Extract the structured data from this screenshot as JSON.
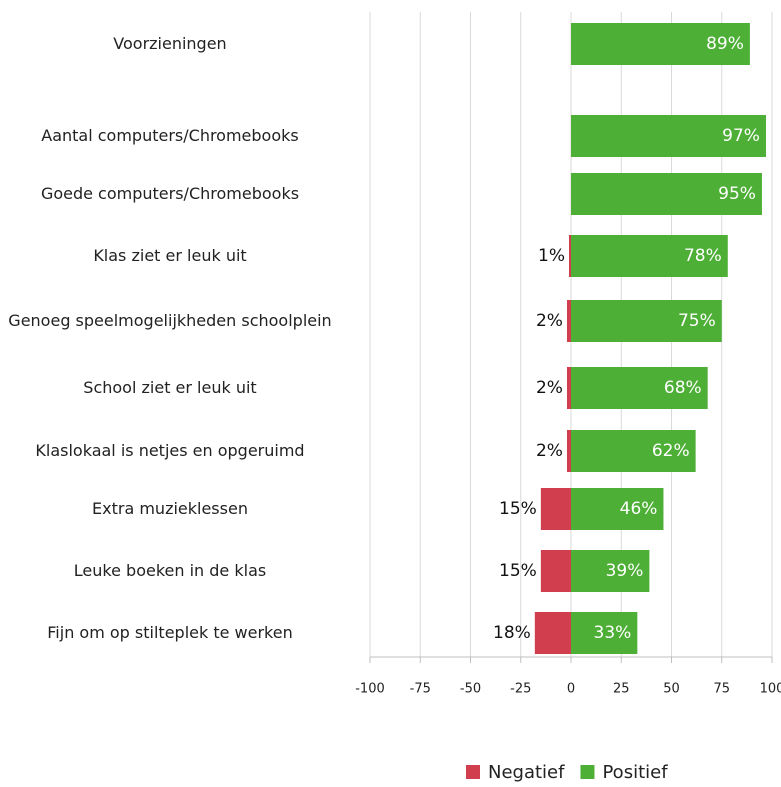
{
  "chart_data": {
    "type": "diverging-bar",
    "categories": [
      "Voorzieningen",
      "Aantal computers/Chromebooks",
      "Goede computers/Chromebooks",
      "Klas ziet er leuk uit",
      "Genoeg speelmogelijkheden schoolplein",
      "School ziet er leuk uit",
      "Klaslokaal is netjes en opgeruimd",
      "Extra muzieklessen",
      "Leuke boeken in de klas",
      "Fijn om op stilteplek te werken"
    ],
    "series": [
      {
        "name": "Negatief",
        "color": "#d13f4f",
        "values": [
          null,
          null,
          null,
          -1,
          -2,
          -2,
          -2,
          -15,
          -15,
          -18
        ],
        "value_labels": [
          null,
          null,
          null,
          "1%",
          "2%",
          "2%",
          "2%",
          "15%",
          "15%",
          "18%"
        ]
      },
      {
        "name": "Positief",
        "color": "#4daf35",
        "values": [
          89,
          97,
          95,
          78,
          75,
          68,
          62,
          46,
          39,
          33
        ],
        "value_labels": [
          "89%",
          "97%",
          "95%",
          "78%",
          "75%",
          "68%",
          "62%",
          "46%",
          "39%",
          "33%"
        ]
      }
    ],
    "xlim": [
      -100,
      100
    ],
    "xticks": [
      -100,
      -75,
      -50,
      -25,
      0,
      25,
      50,
      75,
      100
    ],
    "grid": true,
    "legend": "bottom"
  }
}
